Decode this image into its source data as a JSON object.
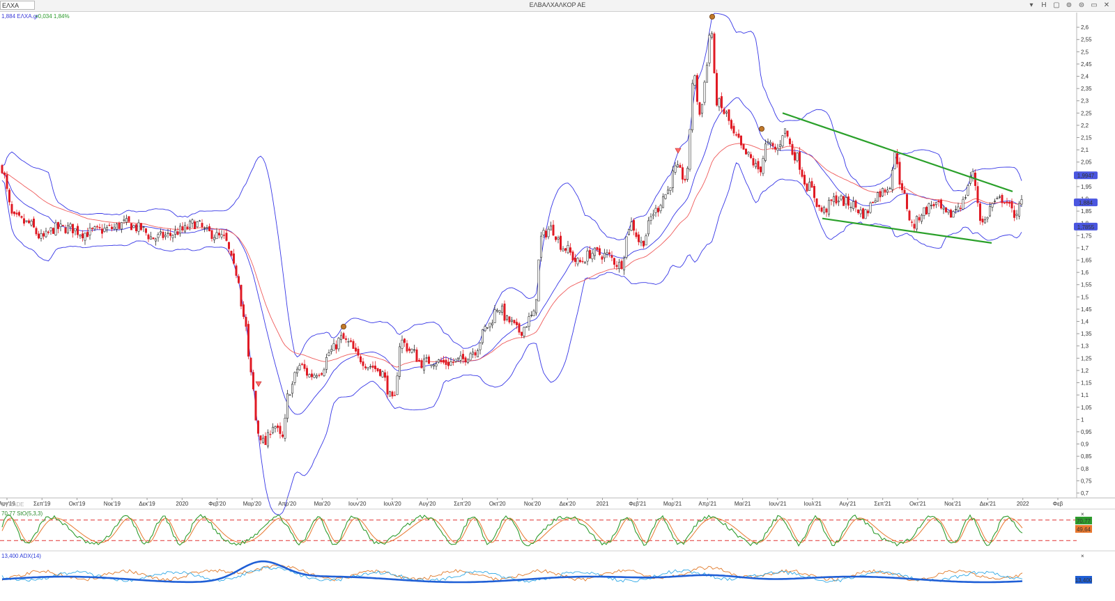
{
  "window": {
    "symbol": "ΕΛΧΑ",
    "title": "ΕΛΒΑΛΧΑΛΚΟΡ ΑΕ",
    "controls": [
      "▾",
      "H",
      "▢",
      "⊚",
      "⊜",
      "▭",
      "✕"
    ]
  },
  "legend": {
    "price": "1,884 ΕΛΧΑ.gr",
    "change": "+0,034 1,84%",
    "stoch": "70,77 StO(5,3,3)",
    "adx": "13,400 ADX(14)"
  },
  "watermark": "ETRADE",
  "colors": {
    "up": "#2b2b2b",
    "down": "#e01b24",
    "bollinger": "#3535e6",
    "ma": "#ef5a5a",
    "trend": "#2aa02a",
    "stoch_k": "#2e9c2e",
    "stoch_d": "#e8772e",
    "adx": "#1f5fd6",
    "di_plus": "#30a9e6",
    "di_minus": "#e07a2a"
  },
  "chart_data": {
    "type": "line",
    "ylim": [
      0.68,
      2.66
    ],
    "y_ticks": [
      "2,6",
      "2,55",
      "2,5",
      "2,45",
      "2,4",
      "2,35",
      "2,3",
      "2,25",
      "2,2",
      "2,15",
      "2,1",
      "2,05",
      "2",
      "1,95",
      "1,9",
      "1,85",
      "1,8",
      "1,75",
      "1,7",
      "1,65",
      "1,6",
      "1,55",
      "1,5",
      "1,45",
      "1,4",
      "1,35",
      "1,3",
      "1,25",
      "1,2",
      "1,15",
      "1,1",
      "1,05",
      "1",
      "0,95",
      "0,9",
      "0,85",
      "0,8",
      "0,75",
      "0,7"
    ],
    "x_labels": [
      "Αυγ'19",
      "Σεπ'19",
      "Οκτ'19",
      "Νοε'19",
      "Δεκ'19",
      "2020",
      "Φεβ'20",
      "Μαρ'20",
      "Απρ'20",
      "Μαι'20",
      "Ιουν'20",
      "Ιουλ'20",
      "Αυγ'20",
      "Σεπ'20",
      "Οκτ'20",
      "Νοε'20",
      "Δεκ'20",
      "2021",
      "Φεβ'21",
      "Μαρ'21",
      "Απρ'21",
      "Μαι'21",
      "Ιουν'21",
      "Ιουλ'21",
      "Αυγ'21",
      "Σεπ'21",
      "Οκτ'21",
      "Νοε'21",
      "Δεκ'21",
      "2022",
      "Φεβ"
    ],
    "price_anchors": [
      [
        0,
        2.04
      ],
      [
        20,
        1.82
      ],
      [
        40,
        1.8
      ],
      [
        60,
        1.74
      ],
      [
        80,
        1.78
      ],
      [
        100,
        1.78
      ],
      [
        120,
        1.76
      ],
      [
        140,
        1.77
      ],
      [
        160,
        1.78
      ],
      [
        180,
        1.8
      ],
      [
        200,
        1.78
      ],
      [
        220,
        1.74
      ],
      [
        240,
        1.75
      ],
      [
        260,
        1.77
      ],
      [
        280,
        1.8
      ],
      [
        300,
        1.76
      ],
      [
        320,
        1.74
      ],
      [
        340,
        1.6
      ],
      [
        350,
        1.42
      ],
      [
        360,
        1.18
      ],
      [
        370,
        0.95
      ],
      [
        380,
        0.9
      ],
      [
        392,
        0.98
      ],
      [
        405,
        0.92
      ],
      [
        415,
        1.12
      ],
      [
        430,
        1.22
      ],
      [
        445,
        1.18
      ],
      [
        460,
        1.2
      ],
      [
        475,
        1.28
      ],
      [
        490,
        1.33
      ],
      [
        500,
        1.31
      ],
      [
        515,
        1.25
      ],
      [
        530,
        1.22
      ],
      [
        545,
        1.2
      ],
      [
        565,
        1.07
      ],
      [
        575,
        1.32
      ],
      [
        590,
        1.28
      ],
      [
        605,
        1.23
      ],
      [
        620,
        1.24
      ],
      [
        640,
        1.23
      ],
      [
        660,
        1.24
      ],
      [
        680,
        1.28
      ],
      [
        700,
        1.38
      ],
      [
        715,
        1.46
      ],
      [
        730,
        1.4
      ],
      [
        745,
        1.36
      ],
      [
        765,
        1.42
      ],
      [
        778,
        1.75
      ],
      [
        790,
        1.78
      ],
      [
        810,
        1.7
      ],
      [
        830,
        1.64
      ],
      [
        850,
        1.68
      ],
      [
        870,
        1.67
      ],
      [
        890,
        1.63
      ],
      [
        905,
        1.8
      ],
      [
        920,
        1.72
      ],
      [
        940,
        1.85
      ],
      [
        955,
        1.92
      ],
      [
        970,
        2.02
      ],
      [
        985,
        1.98
      ],
      [
        995,
        2.4
      ],
      [
        1005,
        2.24
      ],
      [
        1012,
        2.4
      ],
      [
        1020,
        2.6
      ],
      [
        1028,
        2.3
      ],
      [
        1040,
        2.25
      ],
      [
        1055,
        2.15
      ],
      [
        1070,
        2.08
      ],
      [
        1090,
        2.02
      ],
      [
        1100,
        2.12
      ],
      [
        1115,
        2.1
      ],
      [
        1125,
        2.18
      ],
      [
        1140,
        2.08
      ],
      [
        1160,
        1.95
      ],
      [
        1180,
        1.85
      ],
      [
        1200,
        1.9
      ],
      [
        1220,
        1.88
      ],
      [
        1240,
        1.84
      ],
      [
        1260,
        1.92
      ],
      [
        1275,
        1.95
      ],
      [
        1285,
        2.08
      ],
      [
        1295,
        1.92
      ],
      [
        1310,
        1.79
      ],
      [
        1325,
        1.85
      ],
      [
        1340,
        1.88
      ],
      [
        1360,
        1.83
      ],
      [
        1380,
        1.88
      ],
      [
        1395,
        2.0
      ],
      [
        1410,
        1.8
      ],
      [
        1425,
        1.88
      ],
      [
        1440,
        1.9
      ],
      [
        1455,
        1.84
      ],
      [
        1468,
        1.884
      ]
    ],
    "stoch_range": [
      0,
      100
    ],
    "stoch_levels": [
      80,
      20
    ],
    "stoch_last": {
      "k": "70,77",
      "d": "49,64"
    },
    "adx_last": "13,400",
    "bollinger_last": {
      "upper": "1,9947",
      "lower": "1,7855"
    },
    "last_price": "1,884",
    "annotations": {
      "trend_upper": [
        [
          1123,
          2.25
        ],
        [
          1453,
          1.93
        ]
      ],
      "trend_lower": [
        [
          1180,
          1.82
        ],
        [
          1423,
          1.72
        ]
      ]
    }
  }
}
